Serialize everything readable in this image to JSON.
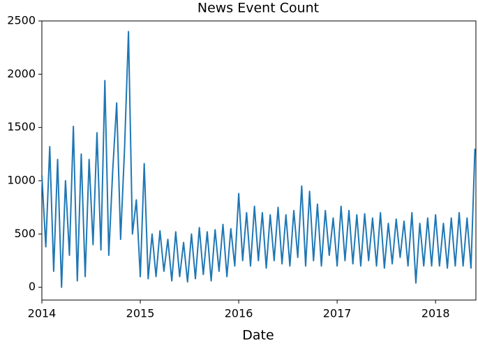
{
  "chart_data": {
    "type": "line",
    "title": "News Event Count",
    "x_label": "Date",
    "color": "#1f77b4",
    "x": [
      2014,
      2014.04,
      2014.08,
      2014.12,
      2014.16,
      2014.2,
      2014.24,
      2014.28,
      2014.32,
      2014.36,
      2014.4,
      2014.44,
      2014.48,
      2014.52,
      2014.56,
      2014.6,
      2014.64,
      2014.68,
      2014.72,
      2014.76,
      2014.8,
      2014.84,
      2014.88,
      2014.92,
      2014.96,
      2015,
      2015.04,
      2015.08,
      2015.12,
      2015.16,
      2015.2,
      2015.24,
      2015.28,
      2015.32,
      2015.36,
      2015.4,
      2015.44,
      2015.48,
      2015.52,
      2015.56,
      2015.6,
      2015.64,
      2015.68,
      2015.72,
      2015.76,
      2015.8,
      2015.84,
      2015.88,
      2015.92,
      2015.96,
      2016,
      2016.04,
      2016.08,
      2016.12,
      2016.16,
      2016.2,
      2016.24,
      2016.28,
      2016.32,
      2016.36,
      2016.4,
      2016.44,
      2016.48,
      2016.52,
      2016.56,
      2016.6,
      2016.64,
      2016.68,
      2016.72,
      2016.76,
      2016.8,
      2016.84,
      2016.88,
      2016.92,
      2016.96,
      2017,
      2017.04,
      2017.08,
      2017.12,
      2017.16,
      2017.2,
      2017.24,
      2017.28,
      2017.32,
      2017.36,
      2017.4,
      2017.44,
      2017.48,
      2017.52,
      2017.56,
      2017.6,
      2017.64,
      2017.68,
      2017.72,
      2017.76,
      2017.8,
      2017.84,
      2017.88,
      2017.92,
      2017.96,
      2018,
      2018.04,
      2018.08,
      2018.12,
      2018.16,
      2018.2,
      2018.24,
      2018.28,
      2018.32,
      2018.36,
      2018.4
    ],
    "values": [
      1050,
      380,
      1320,
      150,
      1200,
      0,
      1000,
      300,
      1510,
      60,
      1250,
      100,
      1200,
      400,
      1450,
      350,
      1940,
      300,
      1100,
      1730,
      450,
      1300,
      2400,
      500,
      820,
      100,
      1160,
      80,
      500,
      100,
      530,
      150,
      450,
      60,
      520,
      100,
      420,
      50,
      500,
      80,
      560,
      120,
      520,
      60,
      540,
      150,
      590,
      100,
      550,
      200,
      880,
      250,
      700,
      200,
      760,
      250,
      700,
      180,
      680,
      250,
      750,
      220,
      680,
      200,
      720,
      280,
      950,
      200,
      900,
      250,
      780,
      200,
      720,
      300,
      650,
      200,
      760,
      250,
      720,
      220,
      680,
      200,
      690,
      250,
      650,
      200,
      700,
      180,
      600,
      220,
      640,
      280,
      620,
      200,
      700,
      40,
      600,
      200,
      650,
      200,
      680,
      200,
      600,
      180,
      650,
      200,
      700,
      200,
      650,
      180,
      1300
    ],
    "xlim": [
      2014,
      2018.41
    ],
    "xticks": [
      2014,
      2015,
      2016,
      2017,
      2018
    ],
    "ylim": [
      -120,
      2500
    ],
    "yticks": [
      0,
      500,
      1000,
      1500,
      2000,
      2500
    ]
  }
}
